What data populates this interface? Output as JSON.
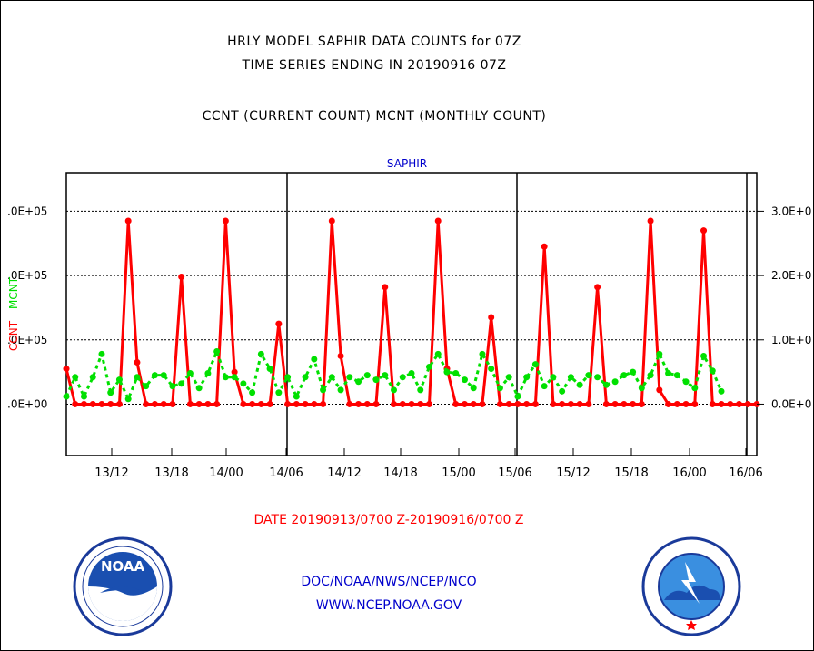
{
  "header": {
    "title1": "HRLY MODEL SAPHIR DATA COUNTS for 07Z",
    "title2": "TIME SERIES ENDING IN 20190916 07Z",
    "title3": "CCNT (CURRENT COUNT) MCNT (MONTHLY COUNT)"
  },
  "footer": {
    "date_range": "DATE 20190913/0700 Z-20190916/0700 Z",
    "org": "DOC/NOAA/NWS/NCEP/NCO",
    "url": "WWW.NCEP.NOAA.GOV"
  },
  "logos": {
    "left": "NOAA",
    "right": "NATIONAL WEATHER SERVICE"
  },
  "colors": {
    "ccnt": "#ff0000",
    "mcnt": "#00e000",
    "subtitle": "#0000cc",
    "date": "#ff0000",
    "links": "#0000cc"
  },
  "chart_data": {
    "type": "line",
    "subtitle": "SAPHIR",
    "ylabel_left_1": "CCNT",
    "ylabel_left_2": "MCNT",
    "left_ticks": [
      ".0E+05",
      ".0E+05",
      ".0E+05",
      ".0E+00"
    ],
    "right_ticks": [
      "3.0E+0",
      "2.0E+0",
      "1.0E+0",
      "0.0E+0"
    ],
    "x_ticks": [
      "13/12",
      "13/18",
      "14/00",
      "14/06",
      "14/12",
      "14/18",
      "15/00",
      "15/06",
      "15/12",
      "15/18",
      "16/00",
      "16/06"
    ],
    "ylim": [
      -0.8,
      3.6
    ],
    "series": [
      {
        "name": "CCNT",
        "values": [
          0.55,
          0,
          0,
          0,
          0,
          0,
          0,
          2.85,
          0.65,
          0,
          0,
          0,
          0,
          1.98,
          0,
          0,
          0,
          0,
          2.85,
          0.5,
          0,
          0,
          0,
          0,
          1.25,
          0,
          0,
          0,
          0,
          0,
          2.85,
          0.75,
          0,
          0,
          0,
          0,
          1.82,
          0,
          0,
          0,
          0,
          0,
          2.85,
          0.55,
          0,
          0,
          0,
          0,
          1.35,
          0,
          0,
          0,
          0,
          0,
          2.45,
          0,
          0,
          0,
          0,
          0,
          1.82,
          0,
          0,
          0,
          0,
          0,
          2.85,
          0.22,
          0,
          0,
          0,
          0,
          2.7,
          0,
          0,
          0,
          0,
          0,
          0
        ]
      },
      {
        "name": "MCNT",
        "values": [
          0.12,
          0.42,
          0.12,
          0.42,
          0.78,
          0.18,
          0.38,
          0.08,
          0.42,
          0.28,
          0.45,
          0.45,
          0.28,
          0.32,
          0.48,
          0.25,
          0.48,
          0.82,
          0.42,
          0.42,
          0.32,
          0.18,
          0.78,
          0.55,
          0.18,
          0.42,
          0.12,
          0.42,
          0.7,
          0.22,
          0.42,
          0.22,
          0.42,
          0.35,
          0.45,
          0.38,
          0.45,
          0.22,
          0.42,
          0.48,
          0.22,
          0.58,
          0.78,
          0.5,
          0.48,
          0.38,
          0.25,
          0.78,
          0.55,
          0.25,
          0.42,
          0.12,
          0.42,
          0.62,
          0.28,
          0.42,
          0.2,
          0.42,
          0.3,
          0.45,
          0.42,
          0.3,
          0.35,
          0.45,
          0.5,
          0.25,
          0.45,
          0.78,
          0.48,
          0.45,
          0.35,
          0.25,
          0.75,
          0.52,
          0.2
        ]
      }
    ]
  }
}
